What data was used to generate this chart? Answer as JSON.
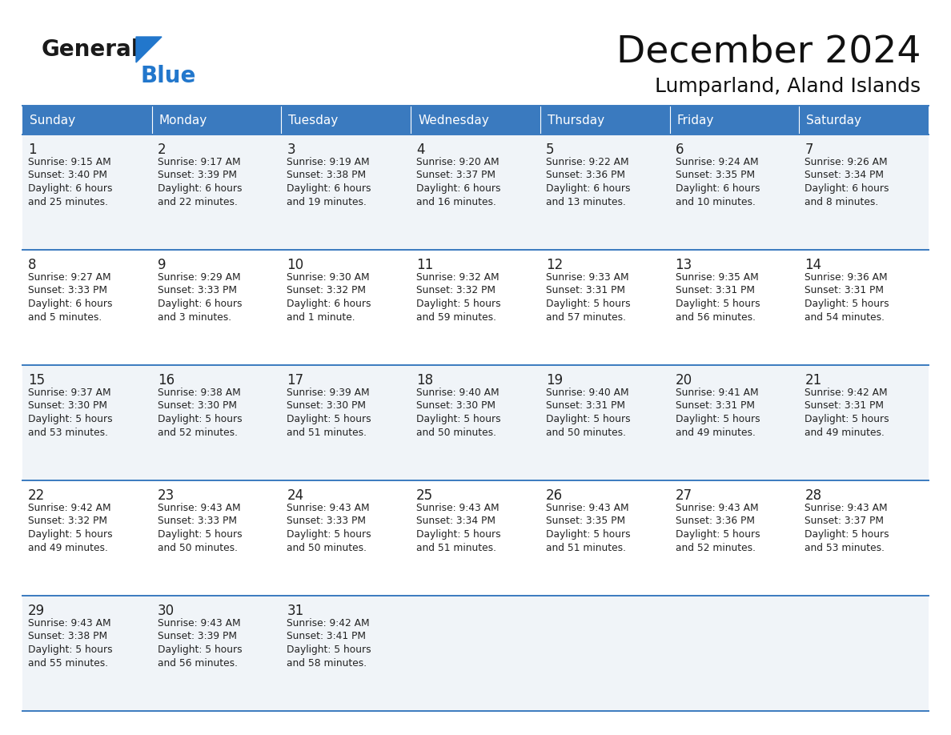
{
  "title": "December 2024",
  "subtitle": "Lumparland, Aland Islands",
  "header_color": "#3a7abf",
  "header_text_color": "#ffffff",
  "cell_bg_light": "#f0f4f8",
  "cell_bg_white": "#ffffff",
  "border_color": "#3a7abf",
  "days_of_week": [
    "Sunday",
    "Monday",
    "Tuesday",
    "Wednesday",
    "Thursday",
    "Friday",
    "Saturday"
  ],
  "weeks": [
    [
      {
        "day": 1,
        "sunrise": "9:15 AM",
        "sunset": "3:40 PM",
        "daylight": "6 hours and 25 minutes."
      },
      {
        "day": 2,
        "sunrise": "9:17 AM",
        "sunset": "3:39 PM",
        "daylight": "6 hours and 22 minutes."
      },
      {
        "day": 3,
        "sunrise": "9:19 AM",
        "sunset": "3:38 PM",
        "daylight": "6 hours and 19 minutes."
      },
      {
        "day": 4,
        "sunrise": "9:20 AM",
        "sunset": "3:37 PM",
        "daylight": "6 hours and 16 minutes."
      },
      {
        "day": 5,
        "sunrise": "9:22 AM",
        "sunset": "3:36 PM",
        "daylight": "6 hours and 13 minutes."
      },
      {
        "day": 6,
        "sunrise": "9:24 AM",
        "sunset": "3:35 PM",
        "daylight": "6 hours and 10 minutes."
      },
      {
        "day": 7,
        "sunrise": "9:26 AM",
        "sunset": "3:34 PM",
        "daylight": "6 hours and 8 minutes."
      }
    ],
    [
      {
        "day": 8,
        "sunrise": "9:27 AM",
        "sunset": "3:33 PM",
        "daylight": "6 hours and 5 minutes."
      },
      {
        "day": 9,
        "sunrise": "9:29 AM",
        "sunset": "3:33 PM",
        "daylight": "6 hours and 3 minutes."
      },
      {
        "day": 10,
        "sunrise": "9:30 AM",
        "sunset": "3:32 PM",
        "daylight": "6 hours and 1 minute."
      },
      {
        "day": 11,
        "sunrise": "9:32 AM",
        "sunset": "3:32 PM",
        "daylight": "5 hours and 59 minutes."
      },
      {
        "day": 12,
        "sunrise": "9:33 AM",
        "sunset": "3:31 PM",
        "daylight": "5 hours and 57 minutes."
      },
      {
        "day": 13,
        "sunrise": "9:35 AM",
        "sunset": "3:31 PM",
        "daylight": "5 hours and 56 minutes."
      },
      {
        "day": 14,
        "sunrise": "9:36 AM",
        "sunset": "3:31 PM",
        "daylight": "5 hours and 54 minutes."
      }
    ],
    [
      {
        "day": 15,
        "sunrise": "9:37 AM",
        "sunset": "3:30 PM",
        "daylight": "5 hours and 53 minutes."
      },
      {
        "day": 16,
        "sunrise": "9:38 AM",
        "sunset": "3:30 PM",
        "daylight": "5 hours and 52 minutes."
      },
      {
        "day": 17,
        "sunrise": "9:39 AM",
        "sunset": "3:30 PM",
        "daylight": "5 hours and 51 minutes."
      },
      {
        "day": 18,
        "sunrise": "9:40 AM",
        "sunset": "3:30 PM",
        "daylight": "5 hours and 50 minutes."
      },
      {
        "day": 19,
        "sunrise": "9:40 AM",
        "sunset": "3:31 PM",
        "daylight": "5 hours and 50 minutes."
      },
      {
        "day": 20,
        "sunrise": "9:41 AM",
        "sunset": "3:31 PM",
        "daylight": "5 hours and 49 minutes."
      },
      {
        "day": 21,
        "sunrise": "9:42 AM",
        "sunset": "3:31 PM",
        "daylight": "5 hours and 49 minutes."
      }
    ],
    [
      {
        "day": 22,
        "sunrise": "9:42 AM",
        "sunset": "3:32 PM",
        "daylight": "5 hours and 49 minutes."
      },
      {
        "day": 23,
        "sunrise": "9:43 AM",
        "sunset": "3:33 PM",
        "daylight": "5 hours and 50 minutes."
      },
      {
        "day": 24,
        "sunrise": "9:43 AM",
        "sunset": "3:33 PM",
        "daylight": "5 hours and 50 minutes."
      },
      {
        "day": 25,
        "sunrise": "9:43 AM",
        "sunset": "3:34 PM",
        "daylight": "5 hours and 51 minutes."
      },
      {
        "day": 26,
        "sunrise": "9:43 AM",
        "sunset": "3:35 PM",
        "daylight": "5 hours and 51 minutes."
      },
      {
        "day": 27,
        "sunrise": "9:43 AM",
        "sunset": "3:36 PM",
        "daylight": "5 hours and 52 minutes."
      },
      {
        "day": 28,
        "sunrise": "9:43 AM",
        "sunset": "3:37 PM",
        "daylight": "5 hours and 53 minutes."
      }
    ],
    [
      {
        "day": 29,
        "sunrise": "9:43 AM",
        "sunset": "3:38 PM",
        "daylight": "5 hours and 55 minutes."
      },
      {
        "day": 30,
        "sunrise": "9:43 AM",
        "sunset": "3:39 PM",
        "daylight": "5 hours and 56 minutes."
      },
      {
        "day": 31,
        "sunrise": "9:42 AM",
        "sunset": "3:41 PM",
        "daylight": "5 hours and 58 minutes."
      },
      null,
      null,
      null,
      null
    ]
  ],
  "logo_color1": "#1a1a1a",
  "logo_color2": "#2277cc",
  "logo_triangle_color": "#2277cc"
}
